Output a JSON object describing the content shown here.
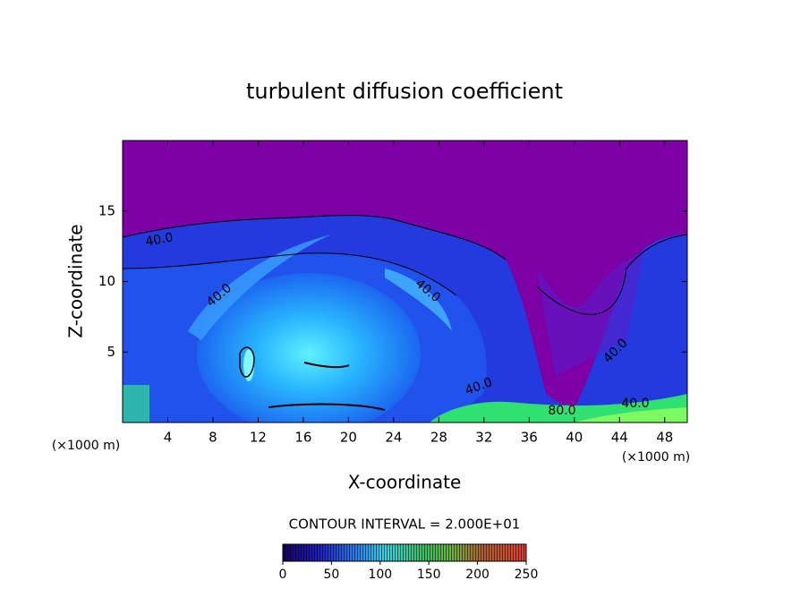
{
  "chart_data": {
    "type": "contour",
    "title": "turbulent diffusion coefficient",
    "xlabel": "X-coordinate",
    "ylabel": "Z-coordinate",
    "xunit": "(×1000 m)",
    "yunit": "(×1000 m)",
    "xlim": [
      0,
      50
    ],
    "xticks": [
      4,
      8,
      12,
      16,
      20,
      24,
      28,
      32,
      36,
      40,
      44,
      48
    ],
    "ylim": [
      0,
      20
    ],
    "yticks": [
      5,
      10,
      15
    ],
    "contour_labels": [
      "40.0",
      "40.0",
      "40.0",
      "40.0",
      "40.0",
      "80.0",
      "40.0"
    ],
    "colorbar": {
      "label": "CONTOUR INTERVAL = 2.000E+01",
      "lim": [
        0,
        250
      ],
      "ticks": [
        0,
        50,
        100,
        150,
        200,
        250
      ]
    }
  }
}
